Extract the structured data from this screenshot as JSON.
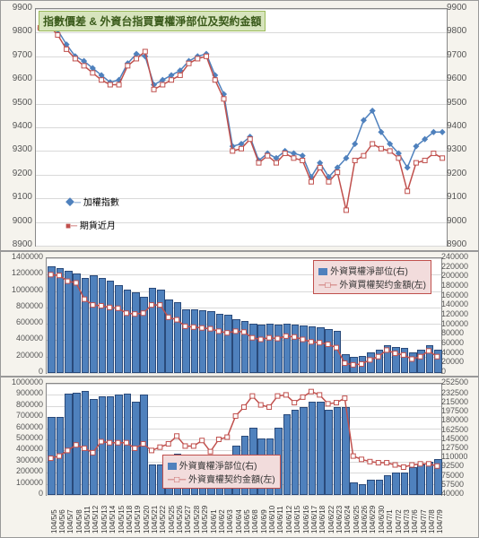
{
  "panel1": {
    "title": "指數價差 & 外資台指買賣權淨部位及契約金額",
    "ylim": [
      8900,
      9900
    ],
    "ytick_step": 100,
    "grid_color": "#d9d9d9",
    "background": "#ffffff",
    "series1": {
      "name": "加權指數",
      "color": "#4f81bd",
      "marker": "diamond",
      "values": [
        9820,
        9830,
        9810,
        9750,
        9700,
        9680,
        9650,
        9620,
        9590,
        9600,
        9670,
        9710,
        9700,
        9580,
        9600,
        9620,
        9640,
        9680,
        9700,
        9710,
        9620,
        9540,
        9320,
        9330,
        9360,
        9260,
        9290,
        9270,
        9300,
        9290,
        9280,
        9190,
        9250,
        9190,
        9230,
        9270,
        9330,
        9430,
        9470,
        9380,
        9330,
        9290,
        9230,
        9320,
        9350,
        9380,
        9380
      ]
    },
    "series2": {
      "name": "期貨近月",
      "color": "#c0504d",
      "marker": "square",
      "values": [
        9820,
        9830,
        9790,
        9730,
        9690,
        9660,
        9630,
        9600,
        9580,
        9580,
        9660,
        9690,
        9720,
        9560,
        9580,
        9600,
        9620,
        9670,
        9690,
        9700,
        9600,
        9520,
        9300,
        9310,
        9350,
        9250,
        9280,
        9250,
        9290,
        9270,
        9260,
        9170,
        9230,
        9170,
        9210,
        9050,
        9260,
        9280,
        9330,
        9310,
        9300,
        9270,
        9130,
        9250,
        9260,
        9290,
        9270
      ]
    }
  },
  "panel2": {
    "ylim_left": [
      0,
      1400000
    ],
    "ytick_left_step": 200000,
    "ylim_right": [
      0,
      240000
    ],
    "ytick_right_step": 20000,
    "grid_color": "#d9d9d9",
    "background": "#ffffff",
    "bars": {
      "name": "外資買權淨部位(右)",
      "color": "#4f81bd",
      "values": [
        220000,
        215000,
        210000,
        205000,
        195000,
        200000,
        195000,
        190000,
        180000,
        170000,
        165000,
        155000,
        175000,
        170000,
        150000,
        145000,
        130000,
        130000,
        128000,
        125000,
        120000,
        118000,
        108000,
        105000,
        100000,
        98000,
        100000,
        98000,
        100000,
        98000,
        95000,
        93000,
        92000,
        88000,
        85000,
        35000,
        30000,
        32000,
        40000,
        45000,
        55000,
        50000,
        48000,
        40000,
        45000,
        55000,
        45000
      ]
    },
    "line": {
      "name": "外資買權契约金額(左)",
      "color": "#c0504d",
      "marker": "square",
      "values": [
        1200000,
        1190000,
        1120000,
        1100000,
        900000,
        830000,
        820000,
        800000,
        790000,
        730000,
        720000,
        730000,
        830000,
        830000,
        680000,
        650000,
        570000,
        560000,
        550000,
        540000,
        510000,
        490000,
        510000,
        500000,
        430000,
        410000,
        430000,
        420000,
        450000,
        440000,
        410000,
        380000,
        370000,
        350000,
        310000,
        120000,
        100000,
        110000,
        160000,
        200000,
        280000,
        240000,
        220000,
        170000,
        200000,
        270000,
        200000
      ]
    }
  },
  "panel3": {
    "ylim_left": [
      0,
      1000000
    ],
    "ytick_left_step": 100000,
    "ylim_right": [
      40000,
      252500
    ],
    "ytick_right": [
      40000,
      57500,
      75000,
      92500,
      110000,
      127500,
      145000,
      162500,
      180000,
      197500,
      215000,
      232500,
      252500
    ],
    "grid_color": "#d9d9d9",
    "background": "#ffffff",
    "bars": {
      "name": "外資賣權淨部位(右)",
      "color": "#4f81bd",
      "values": [
        185000,
        185000,
        230000,
        232000,
        235000,
        220000,
        225000,
        225000,
        228000,
        230000,
        215000,
        228000,
        95000,
        95000,
        100000,
        115000,
        100000,
        100000,
        105000,
        90000,
        105000,
        105000,
        130000,
        150000,
        165000,
        145000,
        145000,
        165000,
        190000,
        200000,
        205000,
        215000,
        215000,
        200000,
        205000,
        205000,
        60000,
        57000,
        65000,
        65000,
        75000,
        80000,
        80000,
        90000,
        95000,
        100000,
        105000
      ]
    },
    "line": {
      "name": "外資賣權契约金額(左)",
      "color": "#c0504d",
      "marker": "square",
      "values": [
        330000,
        350000,
        400000,
        450000,
        420000,
        380000,
        480000,
        470000,
        470000,
        470000,
        420000,
        460000,
        400000,
        430000,
        460000,
        530000,
        440000,
        440000,
        490000,
        390000,
        500000,
        520000,
        710000,
        790000,
        890000,
        810000,
        790000,
        890000,
        900000,
        830000,
        880000,
        930000,
        900000,
        820000,
        830000,
        870000,
        350000,
        320000,
        300000,
        290000,
        290000,
        270000,
        250000,
        270000,
        280000,
        280000,
        260000
      ]
    }
  },
  "x_labels": [
    "104/5/5",
    "104/5/6",
    "104/5/7",
    "104/5/8",
    "104/5/11",
    "104/5/12",
    "104/5/13",
    "104/5/14",
    "104/5/15",
    "104/5/18",
    "104/5/19",
    "104/5/20",
    "104/5/21",
    "104/5/22",
    "104/5/25",
    "104/5/26",
    "104/5/27",
    "104/5/28",
    "104/5/29",
    "104/6/1",
    "104/6/2",
    "104/6/3",
    "104/6/4",
    "104/6/5",
    "104/6/8",
    "104/6/9",
    "104/6/10",
    "104/6/11",
    "104/6/12",
    "104/6/15",
    "104/6/16",
    "104/6/17",
    "104/6/18",
    "104/6/22",
    "104/6/23",
    "104/6/24",
    "104/6/25",
    "104/6/26",
    "104/6/29",
    "104/6/30",
    "104/7/1",
    "104/7/2",
    "104/7/3",
    "104/7/6",
    "104/7/7",
    "104/7/8",
    "104/7/9"
  ]
}
